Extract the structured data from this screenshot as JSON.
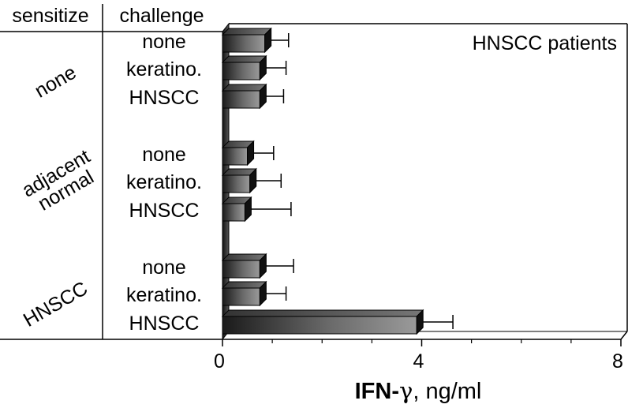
{
  "chart_data": {
    "type": "bar",
    "orientation": "horizontal",
    "title": "HNSCC patients",
    "xlabel_bold": "IFN-",
    "xlabel_greek": "γ",
    "xlabel_unit": ", ng/ml",
    "xlim": [
      0,
      8
    ],
    "xticks": [
      "0",
      "4",
      "8"
    ],
    "col_headers": {
      "sensitize": "sensitize",
      "challenge": "challenge"
    },
    "groups": [
      {
        "sensitize": "none",
        "bars": [
          {
            "challenge": "none",
            "value": 0.85,
            "error": 0.35
          },
          {
            "challenge": "keratino.",
            "value": 0.75,
            "error": 0.4
          },
          {
            "challenge": "HNSCC",
            "value": 0.75,
            "error": 0.35
          }
        ]
      },
      {
        "sensitize": "adjacent normal",
        "sensitize_lines": [
          "adjacent",
          "normal"
        ],
        "bars": [
          {
            "challenge": "none",
            "value": 0.5,
            "error": 0.4
          },
          {
            "challenge": "keratino.",
            "value": 0.55,
            "error": 0.5
          },
          {
            "challenge": "HNSCC",
            "value": 0.45,
            "error": 0.8
          }
        ]
      },
      {
        "sensitize": "HNSCC",
        "bars": [
          {
            "challenge": "none",
            "value": 0.75,
            "error": 0.55
          },
          {
            "challenge": "keratino.",
            "value": 0.75,
            "error": 0.4
          },
          {
            "challenge": "HNSCC",
            "value": 3.9,
            "error": 0.6
          }
        ]
      }
    ],
    "bar_color": "#2a2a2a",
    "grid": false,
    "legend": "none"
  }
}
